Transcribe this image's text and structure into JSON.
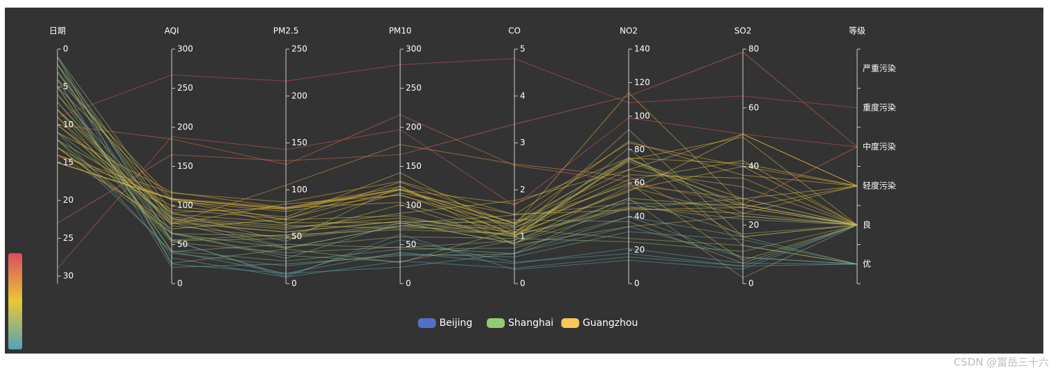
{
  "chart_data": {
    "type": "parallel",
    "axes": [
      {
        "name": "日期",
        "lim": [
          0,
          31
        ],
        "ticks": [
          0,
          5,
          10,
          15,
          20,
          25,
          30
        ],
        "inverse": true
      },
      {
        "name": "AQI",
        "lim": [
          0,
          300
        ],
        "ticks": [
          0,
          50,
          100,
          150,
          200,
          250,
          300
        ]
      },
      {
        "name": "PM2.5",
        "lim": [
          0,
          250
        ],
        "ticks": [
          0,
          50,
          100,
          150,
          200,
          250
        ]
      },
      {
        "name": "PM10",
        "lim": [
          0,
          300
        ],
        "ticks": [
          0,
          50,
          100,
          150,
          200,
          250,
          300
        ]
      },
      {
        "name": "CO",
        "lim": [
          0,
          5
        ],
        "ticks": [
          0,
          1,
          2,
          3,
          4,
          5
        ]
      },
      {
        "name": "NO2",
        "lim": [
          0,
          140
        ],
        "ticks": [
          0,
          20,
          40,
          60,
          80,
          100,
          120,
          140
        ]
      },
      {
        "name": "SO2",
        "lim": [
          0,
          80
        ],
        "ticks": [
          0,
          20,
          40,
          60,
          80
        ]
      },
      {
        "name": "等级",
        "categories": [
          "优",
          "良",
          "轻度污染",
          "中度污染",
          "重度污染",
          "严重污染"
        ]
      }
    ],
    "visual_map": {
      "dimension": 2,
      "min": 0,
      "max": 150,
      "colors": [
        "#50a3ba",
        "#eac736",
        "#d94e5d"
      ]
    },
    "series": [
      {
        "name": "Beijing",
        "color": "#5470c6",
        "rows": [
          [
            1,
            55,
            9,
            56,
            0.46,
            18,
            6,
            "良"
          ],
          [
            2,
            25,
            11,
            21,
            0.65,
            34,
            9,
            "优"
          ],
          [
            3,
            56,
            7,
            63,
            0.3,
            14,
            5,
            "良"
          ],
          [
            4,
            33,
            7,
            29,
            0.33,
            16,
            6,
            "优"
          ],
          [
            5,
            42,
            24,
            44,
            0.76,
            40,
            16,
            "优"
          ],
          [
            6,
            82,
            58,
            90,
            1.77,
            68,
            33,
            "良"
          ],
          [
            7,
            74,
            49,
            77,
            1.46,
            48,
            27,
            "良"
          ],
          [
            8,
            78,
            55,
            80,
            1.29,
            59,
            29,
            "良"
          ],
          [
            9,
            267,
            216,
            280,
            4.8,
            108,
            64,
            "重度污染"
          ],
          [
            10,
            185,
            127,
            216,
            2.52,
            61,
            27,
            "中度污染"
          ],
          [
            11,
            39,
            19,
            38,
            0.57,
            31,
            15,
            "优"
          ],
          [
            12,
            41,
            11,
            40,
            0.43,
            21,
            7,
            "优"
          ],
          [
            13,
            64,
            38,
            74,
            1.04,
            46,
            22,
            "良"
          ],
          [
            14,
            108,
            79,
            120,
            1.7,
            75,
            41,
            "轻度污染"
          ],
          [
            15,
            108,
            63,
            116,
            1.48,
            44,
            26,
            "轻度污染"
          ]
        ]
      },
      {
        "name": "Shanghai",
        "color": "#91cc75",
        "rows": [
          [
            1,
            91,
            45,
            125,
            0.82,
            34,
            23,
            "良"
          ],
          [
            2,
            65,
            27,
            78,
            0.86,
            45,
            29,
            "良"
          ],
          [
            3,
            83,
            60,
            84,
            1.09,
            73,
            27,
            "良"
          ],
          [
            4,
            109,
            81,
            121,
            1.28,
            68,
            51,
            "轻度污染"
          ],
          [
            5,
            106,
            77,
            114,
            1.07,
            55,
            51,
            "轻度污染"
          ],
          [
            8,
            89,
            65,
            78,
            0.86,
            51,
            26,
            "良"
          ],
          [
            9,
            53,
            33,
            47,
            0.64,
            50,
            17,
            "良"
          ],
          [
            10,
            80,
            55,
            80,
            1.01,
            75,
            24,
            "良"
          ],
          [
            11,
            117,
            81,
            124,
            1.03,
            45,
            24,
            "轻度污染"
          ],
          [
            12,
            99,
            71,
            142,
            1.1,
            62,
            42,
            "良"
          ],
          [
            13,
            95,
            69,
            130,
            1.28,
            74,
            50,
            "良"
          ],
          [
            14,
            116,
            87,
            131,
            1.47,
            84,
            40,
            "轻度污染"
          ],
          [
            15,
            108,
            80,
            121,
            1.3,
            85,
            37,
            "轻度污染"
          ],
          [
            23,
            165,
            131,
            165,
            3.4,
            112,
            79,
            "中度污染"
          ],
          [
            29,
            188,
            143,
            197,
            1.66,
            99,
            51,
            "中度污染"
          ]
        ]
      },
      {
        "name": "Guangzhou",
        "color": "#fac858",
        "rows": [
          [
            1,
            26,
            37,
            27,
            1.163,
            27,
            13,
            "优"
          ],
          [
            2,
            85,
            62,
            71,
            1.195,
            60,
            8,
            "良"
          ],
          [
            3,
            78,
            38,
            74,
            1.363,
            37,
            7,
            "良"
          ],
          [
            4,
            21,
            21,
            36,
            0.634,
            40,
            9,
            "优"
          ],
          [
            5,
            41,
            42,
            46,
            0.915,
            81,
            13,
            "优"
          ],
          [
            6,
            56,
            52,
            69,
            1.067,
            92,
            16,
            "良"
          ],
          [
            7,
            64,
            30,
            28,
            0.924,
            51,
            2,
            "良"
          ],
          [
            8,
            55,
            48,
            74,
            1.236,
            75,
            26,
            "良"
          ],
          [
            9,
            76,
            85,
            113,
            1.237,
            114,
            27,
            "良"
          ],
          [
            10,
            91,
            81,
            104,
            1.041,
            56,
            40,
            "良"
          ],
          [
            11,
            84,
            39,
            60,
            0.964,
            25,
            11,
            "良"
          ],
          [
            12,
            64,
            51,
            101,
            0.862,
            58,
            23,
            "良"
          ],
          [
            13,
            70,
            69,
            120,
            1.198,
            65,
            36,
            "良"
          ],
          [
            14,
            77,
            105,
            178,
            2.549,
            64,
            16,
            "良"
          ],
          [
            15,
            109,
            68,
            87,
            0.996,
            74,
            29,
            "轻度污染"
          ]
        ]
      }
    ]
  },
  "watermark": "CSDN @富岳三十六"
}
